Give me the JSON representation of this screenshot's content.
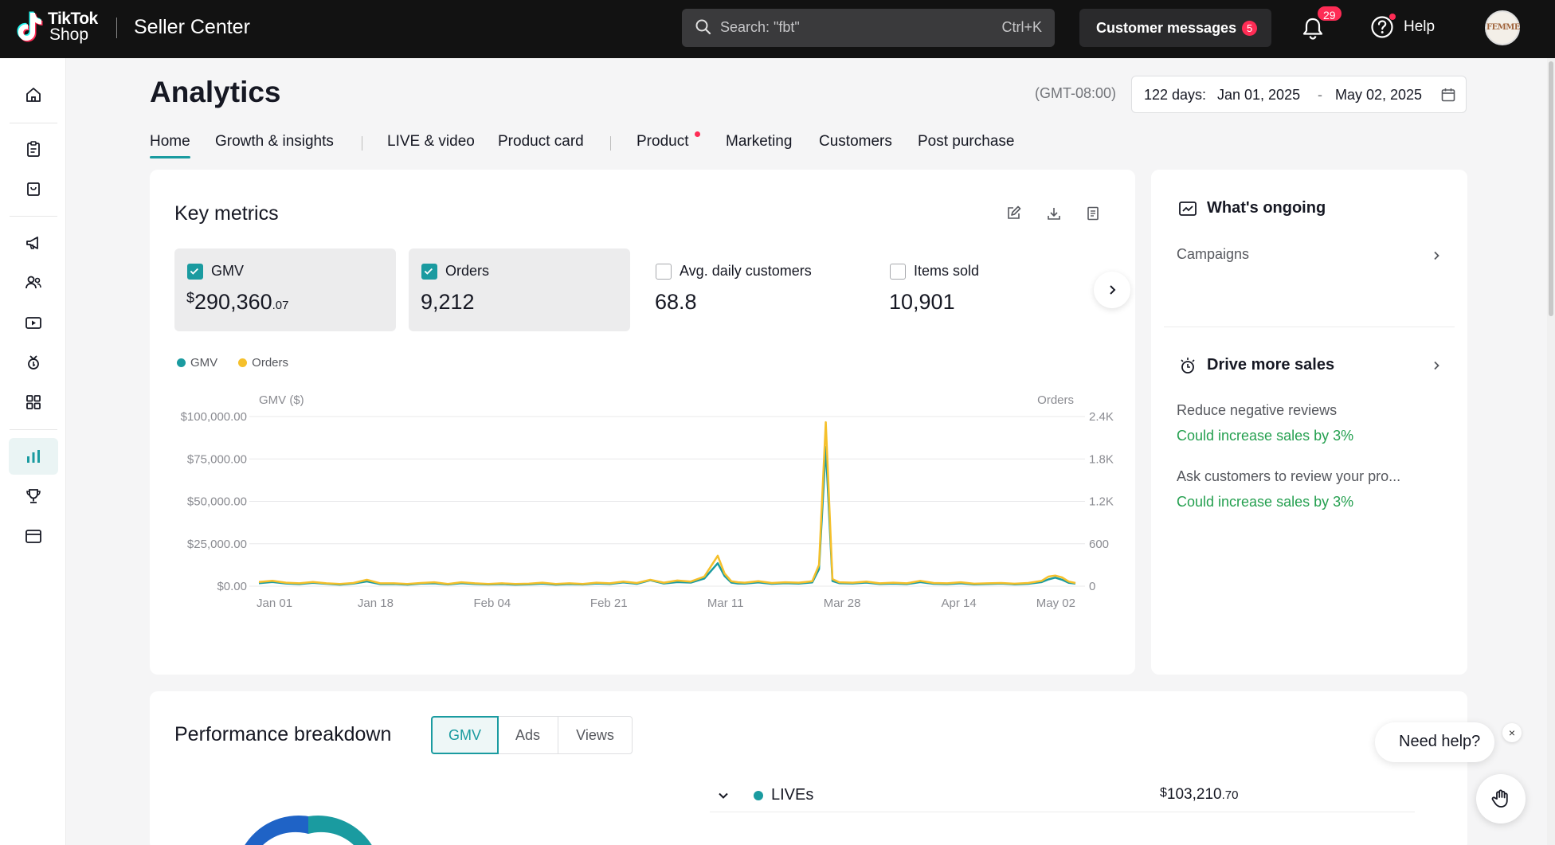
{
  "header": {
    "brand_line1": "TikTok",
    "brand_line2": "Shop",
    "app_title": "Seller Center",
    "search_placeholder": "Search: \"fbt\"",
    "search_shortcut": "Ctrl+K",
    "messages_label": "Customer messages",
    "messages_count": "5",
    "notifications_count": "29",
    "help_label": "Help",
    "avatar_text": "FEMME"
  },
  "page": {
    "title": "Analytics",
    "timezone": "(GMT-08:00)",
    "date_range": {
      "label": "122 days:",
      "start": "Jan 01, 2025",
      "separator": "-",
      "end": "May 02, 2025"
    },
    "tabs": [
      {
        "label": "Home",
        "active": true
      },
      {
        "label": "Growth & insights"
      },
      {
        "label": "LIVE & video"
      },
      {
        "label": "Product card"
      },
      {
        "label": "Product",
        "dot": true
      },
      {
        "label": "Marketing"
      },
      {
        "label": "Customers"
      },
      {
        "label": "Post purchase"
      }
    ]
  },
  "key_metrics": {
    "title": "Key metrics",
    "metrics": [
      {
        "label": "GMV",
        "currency": "$",
        "value": "290,360",
        "cents": ".07",
        "checked": true
      },
      {
        "label": "Orders",
        "value": "9,212",
        "checked": true
      },
      {
        "label": "Avg. daily customers",
        "value": "68.8",
        "checked": false
      },
      {
        "label": "Items sold",
        "value": "10,901",
        "checked": false
      }
    ],
    "legend": [
      {
        "label": "GMV",
        "color": "#1a9ba0"
      },
      {
        "label": "Orders",
        "color": "#f5c02b"
      }
    ]
  },
  "chart_data": {
    "type": "line",
    "x_ticks": [
      "Jan 01",
      "Jan 18",
      "Feb 04",
      "Feb 21",
      "Mar 11",
      "Mar 28",
      "Apr 14",
      "May 02"
    ],
    "ylabel_left": "GMV ($)",
    "ylabel_right": "Orders",
    "y_left_ticks": [
      "$100,000.00",
      "$75,000.00",
      "$50,000.00",
      "$25,000.00",
      "$0.00"
    ],
    "y_right_ticks": [
      "2.4K",
      "1.8K",
      "1.2K",
      "600",
      "0"
    ],
    "y_left_range": [
      0,
      100000
    ],
    "y_right_range": [
      0,
      2400
    ],
    "grid": true,
    "legend_position": "top-left",
    "x_range_days": [
      0,
      121
    ],
    "series": [
      {
        "name": "GMV",
        "color": "#1a9ba0",
        "axis": "left",
        "x": [
          0,
          2,
          4,
          6,
          8,
          10,
          12,
          14,
          16,
          18,
          20,
          22,
          24,
          26,
          28,
          30,
          32,
          34,
          36,
          38,
          40,
          42,
          44,
          46,
          48,
          50,
          52,
          54,
          56,
          58,
          60,
          62,
          64,
          66,
          68,
          69,
          70,
          71,
          72,
          74,
          76,
          78,
          80,
          82,
          83,
          84,
          85,
          86,
          88,
          90,
          92,
          94,
          96,
          98,
          100,
          102,
          104,
          106,
          108,
          110,
          112,
          114,
          116,
          117,
          118,
          119,
          120,
          121
        ],
        "values": [
          1800,
          2500,
          1600,
          1200,
          2000,
          1400,
          900,
          1500,
          2800,
          1200,
          1300,
          900,
          1500,
          1700,
          1000,
          1800,
          1300,
          1000,
          1200,
          900,
          1100,
          1500,
          900,
          1200,
          1000,
          1600,
          1300,
          2200,
          1400,
          3500,
          1600,
          2400,
          2100,
          4500,
          13500,
          6000,
          2100,
          1600,
          1500,
          2200,
          1400,
          1800,
          1500,
          2200,
          10000,
          82000,
          3000,
          1800,
          1600,
          2100,
          1300,
          1500,
          1200,
          2400,
          1400,
          1200,
          1700,
          1100,
          1300,
          1500,
          1100,
          1400,
          2400,
          4000,
          5000,
          3800,
          2000,
          1500
        ]
      },
      {
        "name": "Orders",
        "color": "#f5c02b",
        "axis": "right",
        "x": [
          0,
          2,
          4,
          6,
          8,
          10,
          12,
          14,
          16,
          18,
          20,
          22,
          24,
          26,
          28,
          30,
          32,
          34,
          36,
          38,
          40,
          42,
          44,
          46,
          48,
          50,
          52,
          54,
          56,
          58,
          60,
          62,
          64,
          66,
          68,
          69,
          70,
          71,
          72,
          74,
          76,
          78,
          80,
          82,
          83,
          84,
          85,
          86,
          88,
          90,
          92,
          94,
          96,
          98,
          100,
          102,
          104,
          106,
          108,
          110,
          112,
          114,
          116,
          117,
          118,
          119,
          120,
          121
        ],
        "values": [
          60,
          75,
          50,
          40,
          60,
          40,
          30,
          45,
          90,
          40,
          40,
          30,
          45,
          55,
          30,
          55,
          40,
          30,
          40,
          30,
          35,
          50,
          30,
          40,
          30,
          50,
          40,
          65,
          45,
          90,
          50,
          80,
          65,
          135,
          430,
          180,
          70,
          55,
          50,
          70,
          45,
          55,
          50,
          70,
          300,
          2320,
          100,
          55,
          50,
          65,
          40,
          50,
          40,
          75,
          45,
          40,
          55,
          35,
          40,
          45,
          35,
          45,
          75,
          135,
          150,
          125,
          65,
          45
        ]
      }
    ]
  },
  "whats_ongoing": {
    "title": "What's ongoing",
    "campaigns_label": "Campaigns"
  },
  "drive_sales": {
    "title": "Drive more sales",
    "items": [
      {
        "title": "Reduce negative reviews",
        "impact": "Could increase sales by 3%"
      },
      {
        "title": "Ask customers to review your pro...",
        "impact": "Could increase sales by 3%"
      }
    ]
  },
  "performance": {
    "title": "Performance breakdown",
    "segments": [
      {
        "label": "GMV",
        "active": true
      },
      {
        "label": "Ads"
      },
      {
        "label": "Views"
      }
    ],
    "lives_label": "LIVEs",
    "lives_currency": "$",
    "lives_value": "103,210",
    "lives_cents": ".70"
  },
  "help_widget": {
    "label": "Need help?",
    "close": "×"
  }
}
